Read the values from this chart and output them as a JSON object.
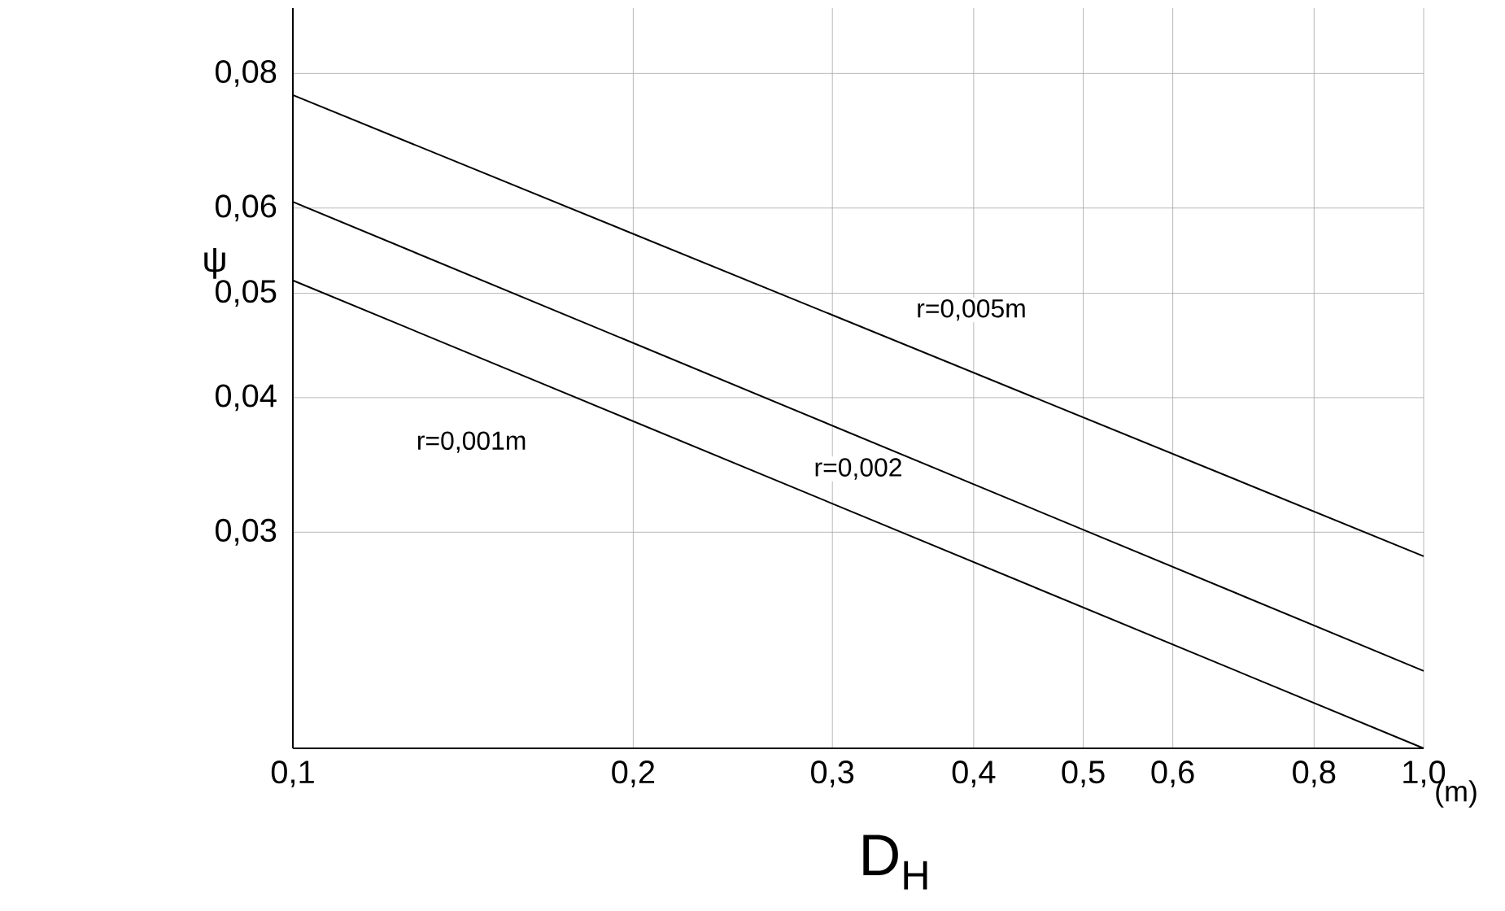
{
  "chart_data": {
    "type": "line",
    "xlabel": "D$_{H}$",
    "ylabel": "ψ",
    "log": "xy",
    "grid": true,
    "xlim": [
      0.1,
      1.0
    ],
    "ylim": [
      0.0189,
      0.092
    ],
    "xticks": [
      {
        "value": 0.1,
        "label": "0,1"
      },
      {
        "value": 0.2,
        "label": "0,2"
      },
      {
        "value": 0.3,
        "label": "0,3"
      },
      {
        "value": 0.4,
        "label": "0,4"
      },
      {
        "value": 0.5,
        "label": "0,5"
      },
      {
        "value": 0.6,
        "label": "0,6"
      },
      {
        "value": 0.8,
        "label": "0,8"
      },
      {
        "value": 1.0,
        "label": "1,0"
      }
    ],
    "yticks": [
      {
        "value": 0.03,
        "label": "0,03"
      },
      {
        "value": 0.04,
        "label": "0,04"
      },
      {
        "value": 0.05,
        "label": "0,05"
      },
      {
        "value": 0.06,
        "label": "0,06"
      },
      {
        "value": 0.08,
        "label": "0,08"
      }
    ],
    "x": [
      0.1,
      1.0
    ],
    "series": [
      {
        "name": "r=0,005m",
        "color": "#000000",
        "values": [
          0.0764,
          0.0285
        ]
      },
      {
        "name": "r=0,002",
        "color": "#000000",
        "values": [
          0.0608,
          0.0223
        ]
      },
      {
        "name": "r=0,001m",
        "color": "#000000",
        "values": [
          0.0514,
          0.0189
        ]
      }
    ],
    "annotations": [
      "(m)"
    ]
  }
}
